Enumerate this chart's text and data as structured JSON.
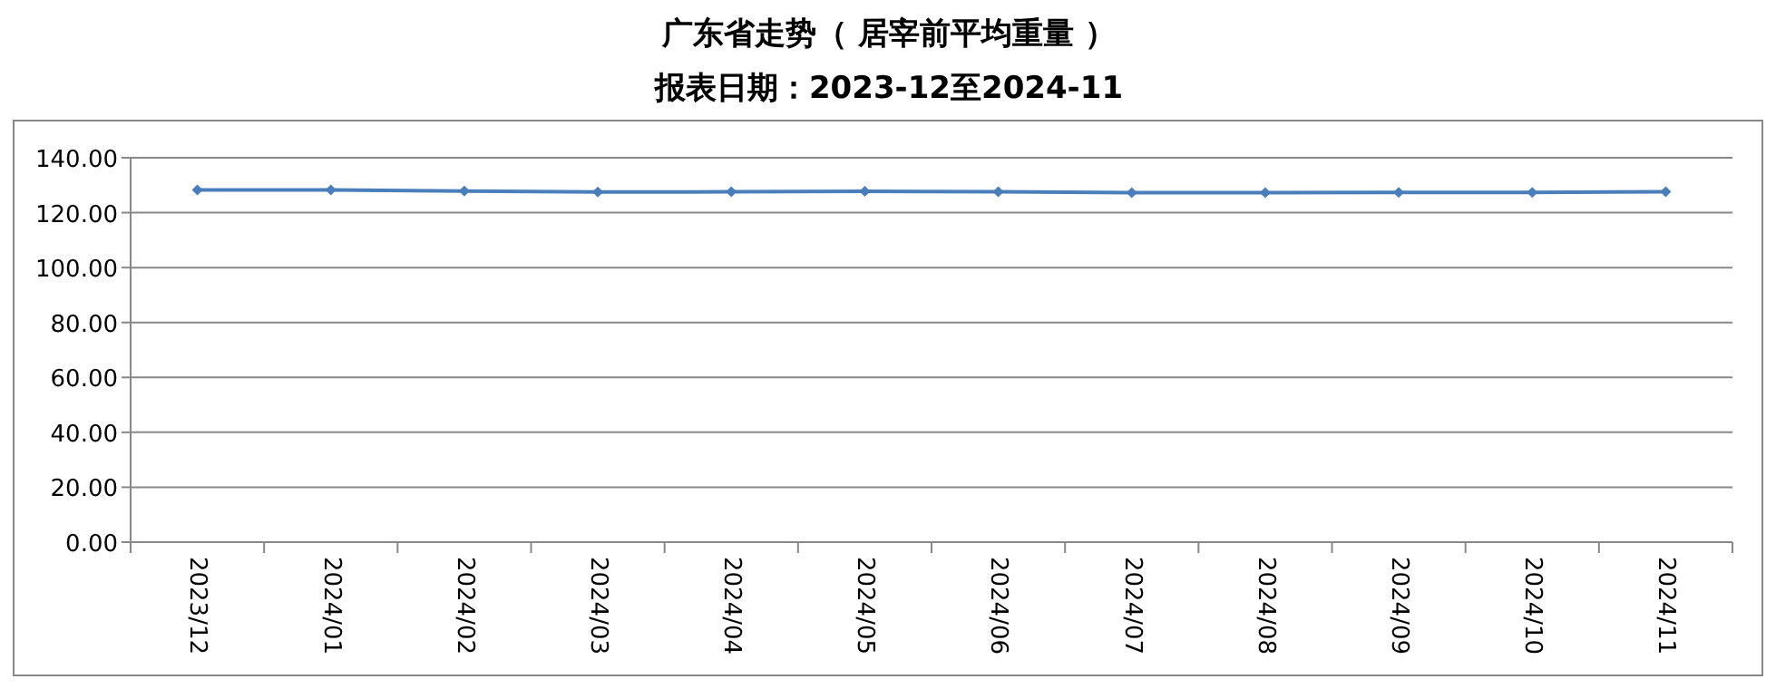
{
  "chart_data": {
    "type": "line",
    "title": "广东省走势（ 居宰前平均重量 ）",
    "subtitle": "报表日期：2023-12至2024-11",
    "categories": [
      "2023/12",
      "2024/01",
      "2024/02",
      "2024/03",
      "2024/04",
      "2024/05",
      "2024/06",
      "2024/07",
      "2024/08",
      "2024/09",
      "2024/10",
      "2024/11"
    ],
    "series": [
      {
        "color": "#4a7ebb",
        "values": [
          128.3,
          128.3,
          127.9,
          127.5,
          127.6,
          127.8,
          127.6,
          127.3,
          127.3,
          127.4,
          127.4,
          127.6
        ]
      }
    ],
    "ylim": [
      0,
      140
    ],
    "yticks": [
      {
        "value": 0,
        "label": "0.00"
      },
      {
        "value": 20,
        "label": "20.00"
      },
      {
        "value": 40,
        "label": "40.00"
      },
      {
        "value": 60,
        "label": "60.00"
      },
      {
        "value": 80,
        "label": "80.00"
      },
      {
        "value": 100,
        "label": "100.00"
      },
      {
        "value": 120,
        "label": "120.00"
      },
      {
        "value": 140,
        "label": "140.00"
      }
    ],
    "grid": "y",
    "marker": "diamond",
    "line_style": "solid"
  }
}
